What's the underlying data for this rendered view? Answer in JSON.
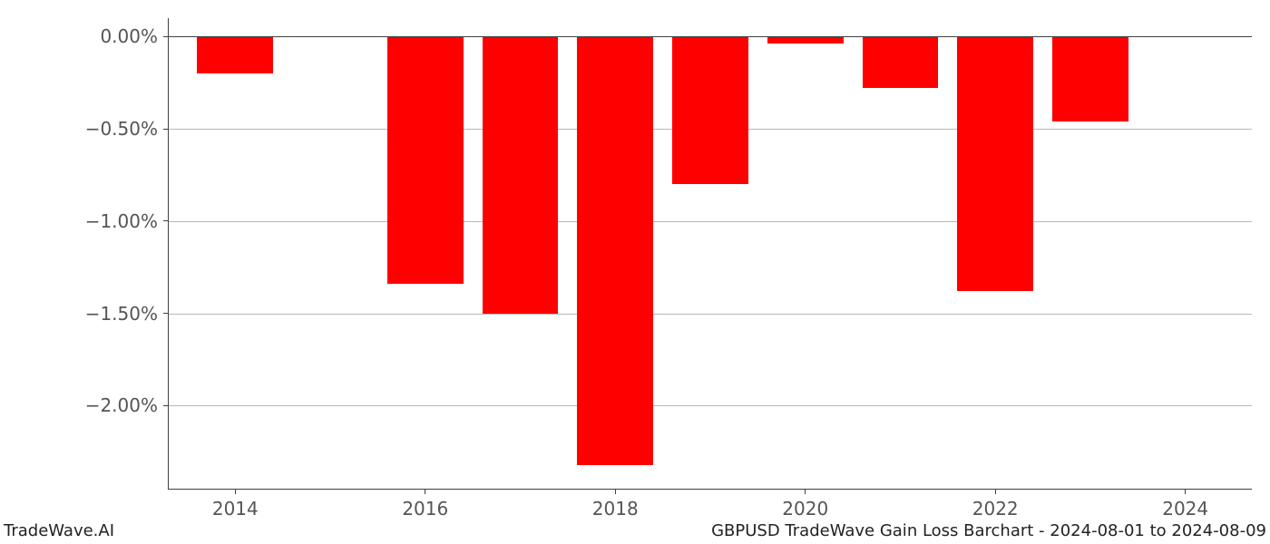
{
  "chart": {
    "type": "bar",
    "background_color": "#ffffff",
    "bar_color": "#ff0000",
    "grid_color": "#b8b8b8",
    "axis_color": "#404040",
    "tick_label_color": "#555555",
    "tick_label_fontsize": 20,
    "footer_fontsize": 18,
    "footer_color": "#222222",
    "y_min": -2.45,
    "y_max": 0.1,
    "y_ticks": [
      0.0,
      -0.5,
      -1.0,
      -1.5,
      -2.0
    ],
    "y_tick_labels": [
      "0.00%",
      "−0.50%",
      "−1.00%",
      "−1.50%",
      "−2.00%"
    ],
    "x_min": 2013.3,
    "x_max": 2024.7,
    "x_ticks": [
      2014,
      2016,
      2018,
      2020,
      2022,
      2024
    ],
    "x_tick_labels": [
      "2014",
      "2016",
      "2018",
      "2020",
      "2022",
      "2024"
    ],
    "bar_half_width_years": 0.4,
    "bars": [
      {
        "x": 2014,
        "value": -0.2
      },
      {
        "x": 2016,
        "value": -1.34
      },
      {
        "x": 2017,
        "value": -1.5
      },
      {
        "x": 2018,
        "value": -2.32
      },
      {
        "x": 2019,
        "value": -0.8
      },
      {
        "x": 2020,
        "value": -0.04
      },
      {
        "x": 2021,
        "value": -0.28
      },
      {
        "x": 2022,
        "value": -1.38
      },
      {
        "x": 2023,
        "value": -0.46
      }
    ]
  },
  "footer": {
    "left": "TradeWave.AI",
    "right": "GBPUSD TradeWave Gain Loss Barchart - 2024-08-01 to 2024-08-09"
  }
}
